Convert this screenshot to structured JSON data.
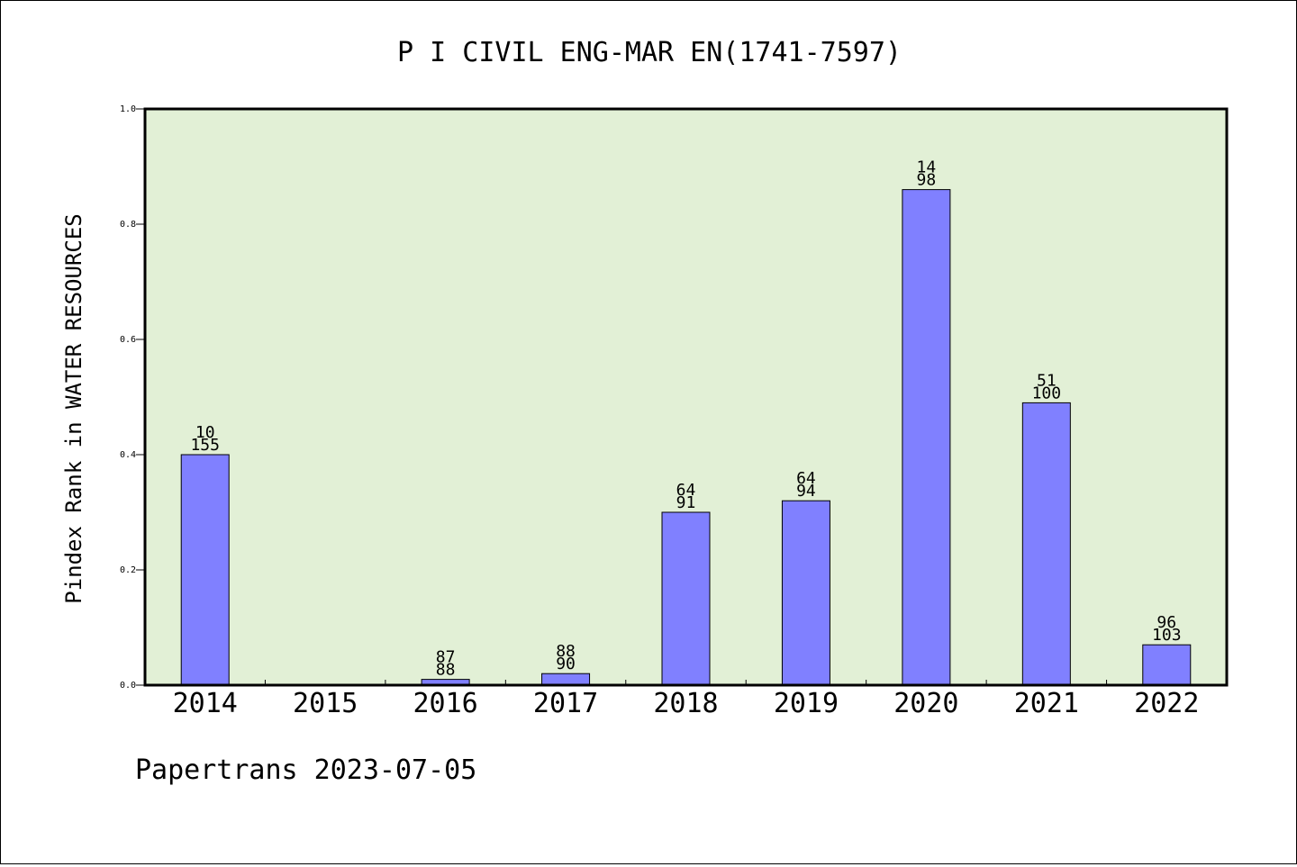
{
  "chart_data": {
    "type": "bar",
    "title": "P I CIVIL ENG-MAR EN(1741-7597)",
    "ylabel": "Pindex Rank in WATER RESOURCES",
    "xlabel": "",
    "footer": "Papertrans 2023-07-05",
    "ylim": [
      0,
      1.0
    ],
    "yticks": [
      "0.0",
      "0.2",
      "0.4",
      "0.6",
      "0.8",
      "1.0"
    ],
    "categories": [
      "2014",
      "2015",
      "2016",
      "2017",
      "2018",
      "2019",
      "2020",
      "2021",
      "2022"
    ],
    "values": [
      0.4,
      null,
      0.01,
      0.02,
      0.3,
      0.32,
      0.86,
      0.49,
      0.07
    ],
    "labels_top": [
      "10",
      "",
      "87",
      "88",
      "64",
      "64",
      "14",
      "51",
      "96"
    ],
    "labels_bottom": [
      "155",
      "",
      "88",
      "90",
      "91",
      "94",
      "98",
      "100",
      "103"
    ],
    "grid": false,
    "colors": {
      "bar": "#8080ff",
      "plot_background": "#e2f0d6",
      "axis": "#000000"
    }
  }
}
